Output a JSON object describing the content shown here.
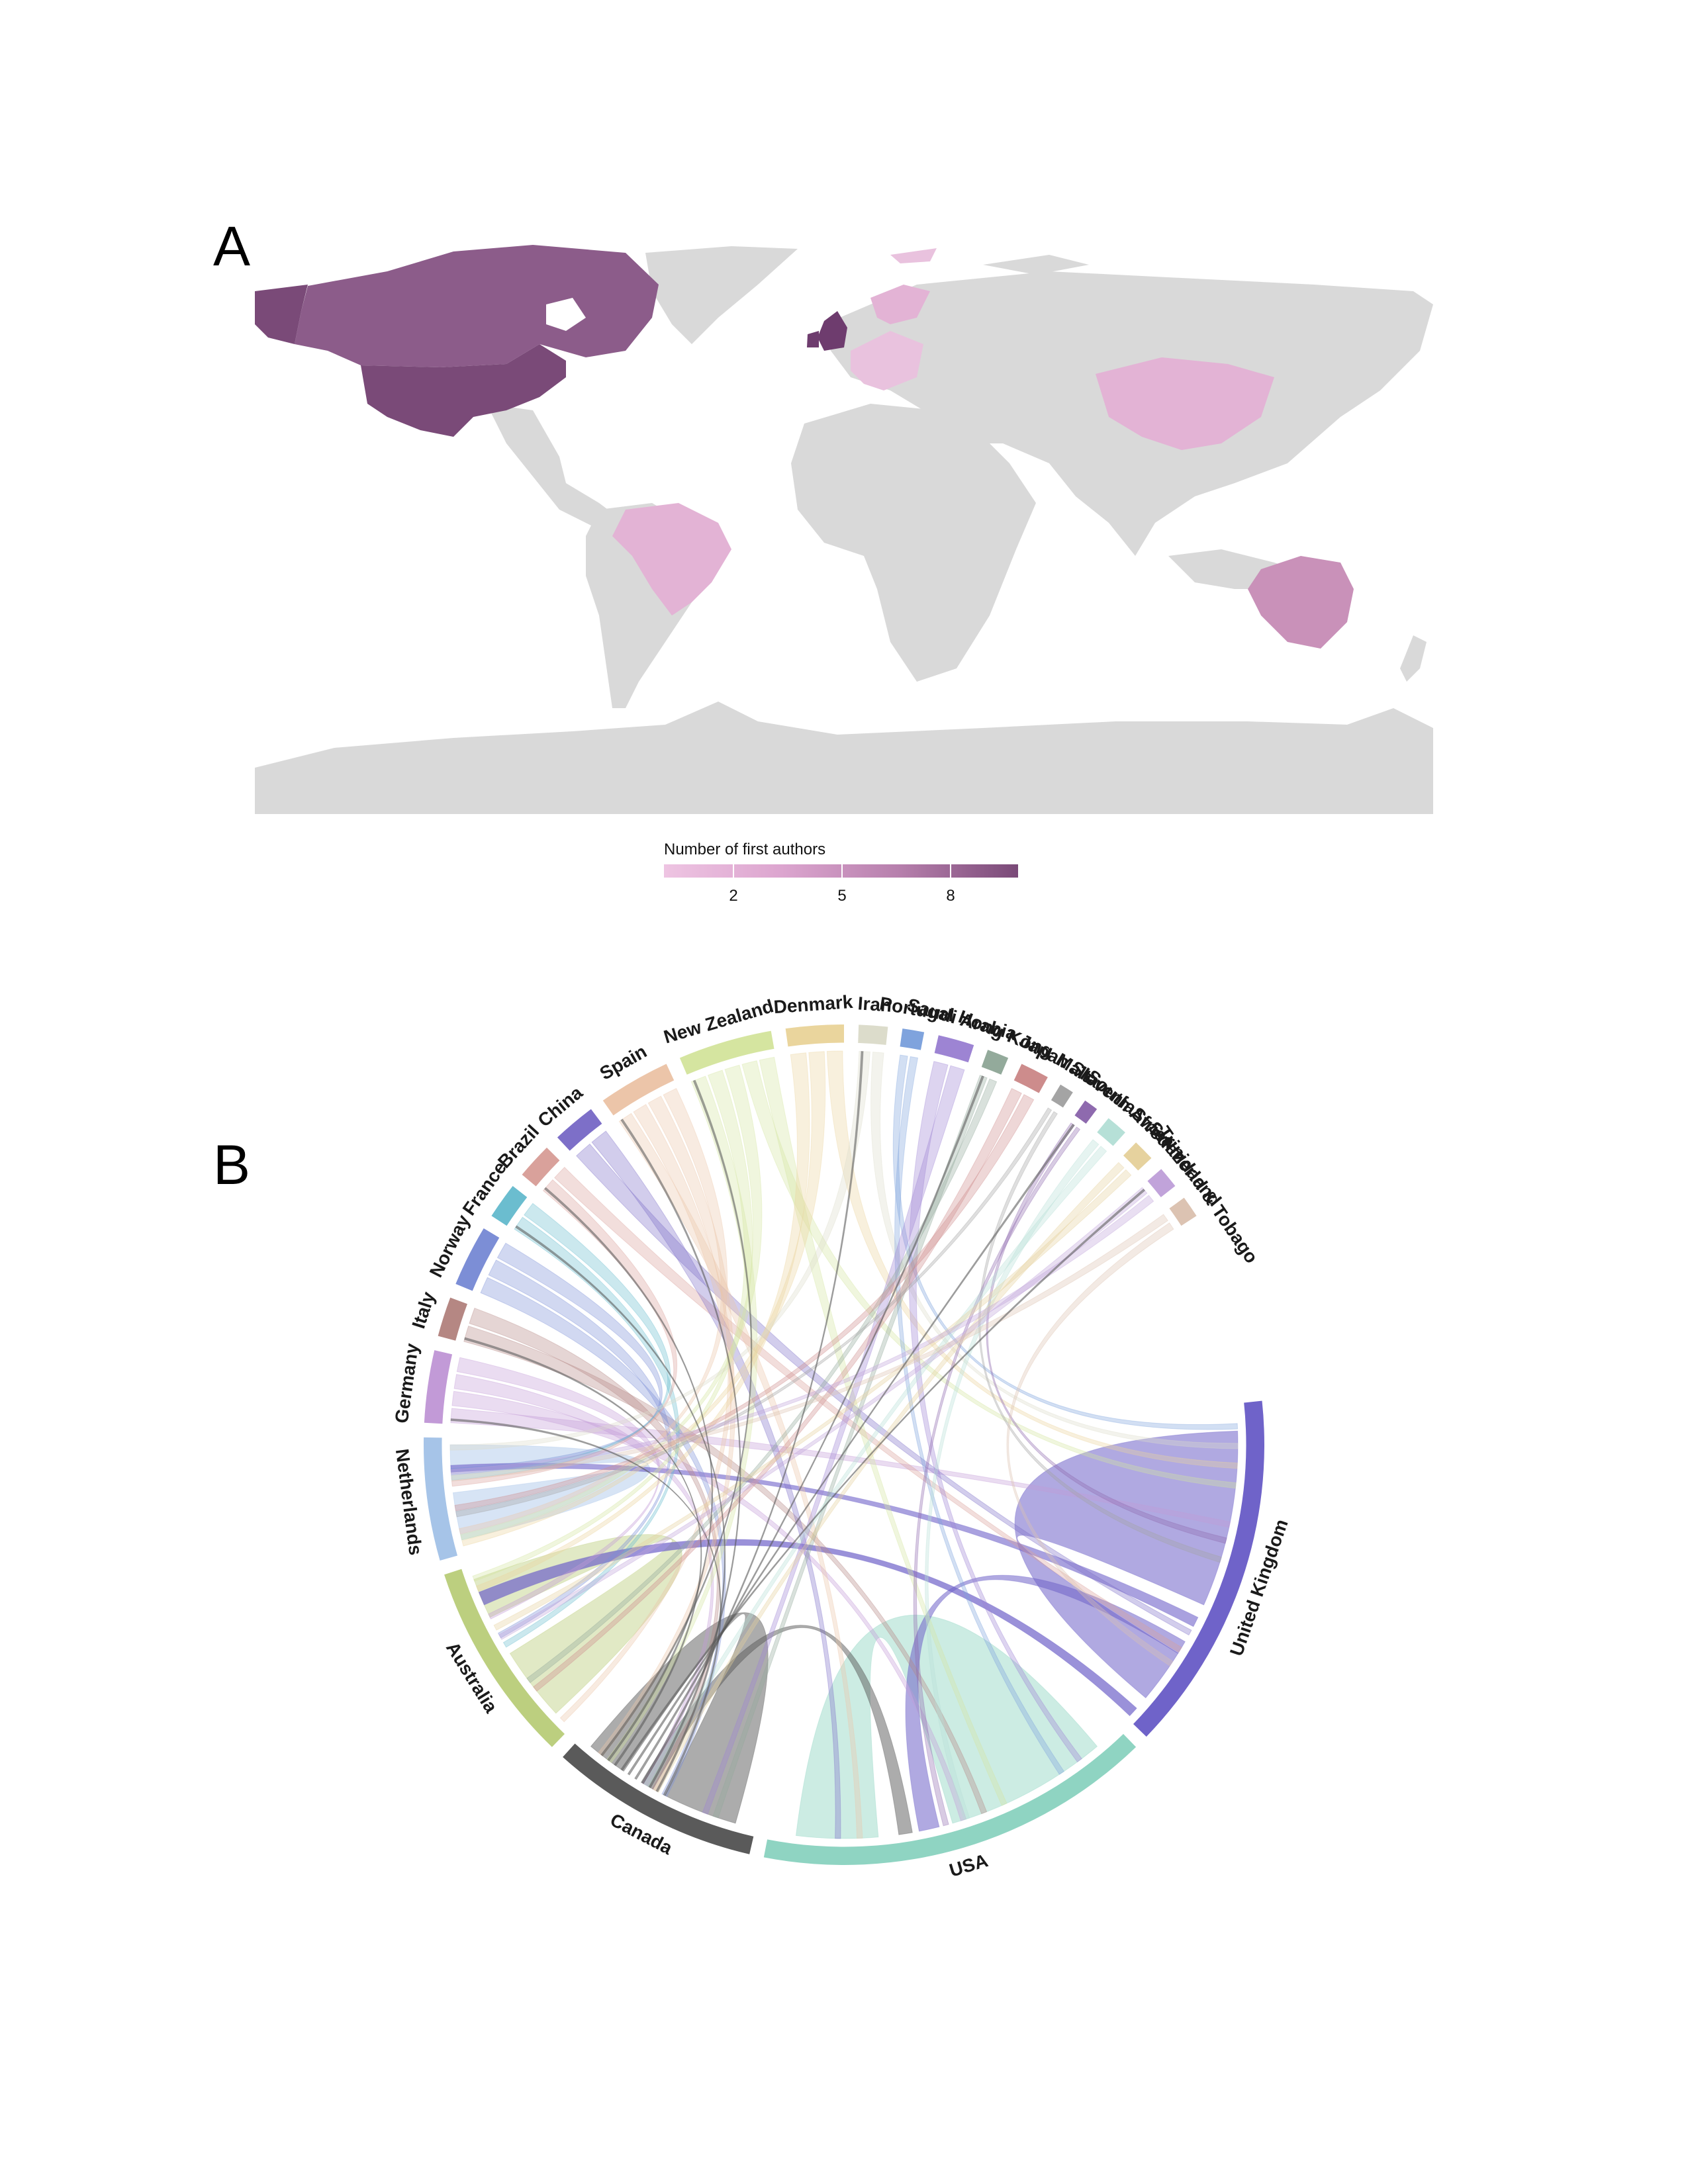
{
  "panels": {
    "a_label": "A",
    "b_label": "B"
  },
  "chart_data": [
    {
      "type": "choropleth",
      "panel": "A",
      "legend": {
        "title": "Number of first authors",
        "ticks": [
          2,
          5,
          8
        ],
        "range": [
          0,
          10
        ],
        "colors": [
          "#eec4e2",
          "#dca5cf",
          "#b67fac",
          "#7a4a78"
        ]
      },
      "base_color": "#d9d9d9",
      "regions": [
        {
          "name": "USA",
          "value": 10,
          "color": "#7a4a78"
        },
        {
          "name": "Canada",
          "value": 8,
          "color": "#8c5c8a"
        },
        {
          "name": "United Kingdom",
          "value": 10,
          "color": "#6e3c6e"
        },
        {
          "name": "Australia",
          "value": 4,
          "color": "#c991b9"
        },
        {
          "name": "Brazil",
          "value": 1,
          "color": "#e3b3d5"
        },
        {
          "name": "China",
          "value": 1,
          "color": "#e3b3d5"
        },
        {
          "name": "Europe (various)",
          "value": 1,
          "color": "#e9c2de"
        }
      ]
    },
    {
      "type": "chord",
      "panel": "B",
      "sectors": [
        {
          "name": "United Kingdom",
          "color": "#6f63c9",
          "start": -6,
          "end": 44
        },
        {
          "name": "USA",
          "color": "#8fd4c2",
          "start": 46,
          "end": 101
        },
        {
          "name": "Canada",
          "color": "#5a5a5a",
          "start": 103,
          "end": 132
        },
        {
          "name": "Australia",
          "color": "#bccf7f",
          "start": 134,
          "end": 162
        },
        {
          "name": "Netherlands",
          "color": "#a6c4e8",
          "start": 164,
          "end": 181
        },
        {
          "name": "Germany",
          "color": "#c29ad7",
          "start": 183,
          "end": 193
        },
        {
          "name": "Italy",
          "color": "#b58783",
          "start": 195,
          "end": 200.5
        },
        {
          "name": "Norway",
          "color": "#7c8ed6",
          "start": 202.5,
          "end": 211
        },
        {
          "name": "France",
          "color": "#6bbdcf",
          "start": 213,
          "end": 218
        },
        {
          "name": "Brazil",
          "color": "#d9a19b",
          "start": 220,
          "end": 225
        },
        {
          "name": "China",
          "color": "#7d6fc8",
          "start": 227,
          "end": 233
        },
        {
          "name": "Spain",
          "color": "#ecc5a9",
          "start": 235,
          "end": 245
        },
        {
          "name": "New Zealand",
          "color": "#d5e5a0",
          "start": 247,
          "end": 260
        },
        {
          "name": "Denmark",
          "color": "#ead59d",
          "start": 262,
          "end": 270
        },
        {
          "name": "Iran",
          "color": "#dcdccb",
          "start": 272,
          "end": 276
        },
        {
          "name": "Portugal",
          "color": "#7fa3dd",
          "start": 278,
          "end": 281
        },
        {
          "name": "Saudi Arabia",
          "color": "#9d84d3",
          "start": 283,
          "end": 288
        },
        {
          "name": "Hong Kong",
          "color": "#93aa9b",
          "start": 290,
          "end": 293
        },
        {
          "name": "Japan",
          "color": "#cd8c8c",
          "start": 295,
          "end": 299
        },
        {
          "name": "Malta",
          "color": "#a4a4a4",
          "start": 301,
          "end": 303
        },
        {
          "name": "Slovenia",
          "color": "#8e6aae",
          "start": 305,
          "end": 307
        },
        {
          "name": "South Africa",
          "color": "#b6e0d7",
          "start": 309,
          "end": 312
        },
        {
          "name": "Sweden",
          "color": "#e6d29e",
          "start": 314,
          "end": 317
        },
        {
          "name": "Switzerland",
          "color": "#c1a3da",
          "start": 319,
          "end": 322
        },
        {
          "name": "Trinidad & Tobago",
          "color": "#dcc3b2",
          "start": 324,
          "end": 327
        }
      ]
    }
  ]
}
